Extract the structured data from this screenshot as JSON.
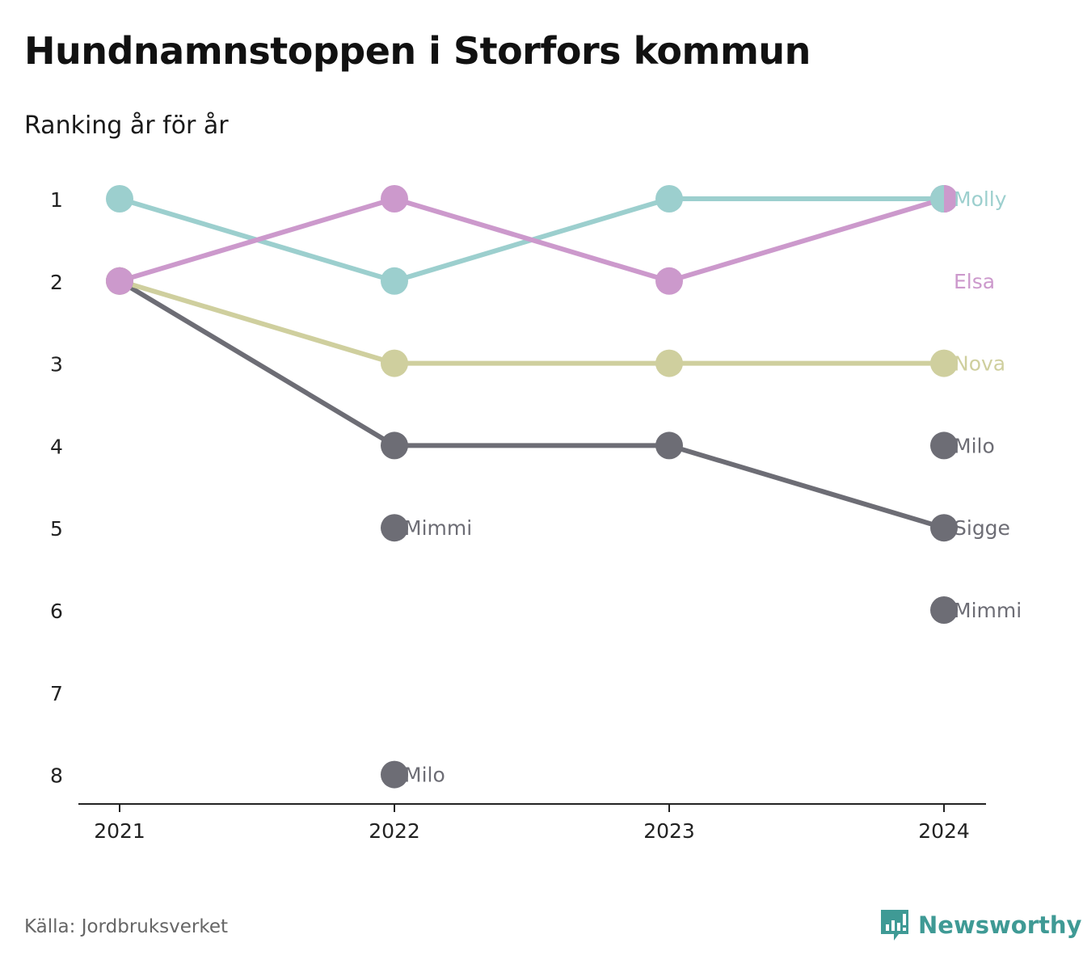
{
  "title": "Hundnamnstoppen i Storfors kommun",
  "subtitle": "Ranking år för år",
  "source": "Källa: Jordbruksverket",
  "brand": {
    "name": "Newsworthy",
    "icon": "newsworthy-logo-icon",
    "color": "#3f9a95"
  },
  "chart_data": {
    "type": "line",
    "x": [
      "2021",
      "2022",
      "2023",
      "2024"
    ],
    "y_ticks": [
      "1",
      "2",
      "3",
      "4",
      "5",
      "6",
      "7",
      "8"
    ],
    "ylim": [
      1,
      8
    ],
    "y_inverted": true,
    "grid": false,
    "legend": "direct labels at line end",
    "series": [
      {
        "name": "Molly",
        "color": "#9ccfce",
        "values": [
          1,
          2,
          1,
          1
        ]
      },
      {
        "name": "Elsa",
        "color": "#cc99cc",
        "values": [
          2,
          1,
          2,
          1
        ]
      },
      {
        "name": "Nova",
        "color": "#cfcf9e",
        "values": [
          2,
          3,
          3,
          3
        ]
      },
      {
        "name": "",
        "color": "#6d6d75",
        "values": [
          2,
          4,
          4,
          5
        ]
      }
    ],
    "extra_points": [
      {
        "x": "2022",
        "rank": 5,
        "label": "Mimmi",
        "color": "#6d6d75"
      },
      {
        "x": "2022",
        "rank": 8,
        "label": "Milo",
        "color": "#6d6d75"
      },
      {
        "x": "2024",
        "rank": 4,
        "label": "Milo",
        "color": "#6d6d75"
      },
      {
        "x": "2024",
        "rank": 6,
        "label": "Mimmi",
        "color": "#6d6d75"
      }
    ],
    "end_labels": [
      {
        "label": "Molly",
        "rank": 1,
        "color": "#9ccfce"
      },
      {
        "label": "Elsa",
        "rank": 2,
        "color": "#cc99cc"
      },
      {
        "label": "Nova",
        "rank": 3,
        "color": "#cfcf9e"
      },
      {
        "label": "Milo",
        "rank": 4,
        "color": "#6d6d75"
      },
      {
        "label": "Sigge",
        "rank": 5,
        "color": "#6d6d75"
      },
      {
        "label": "Mimmi",
        "rank": 6,
        "color": "#6d6d75"
      }
    ]
  }
}
